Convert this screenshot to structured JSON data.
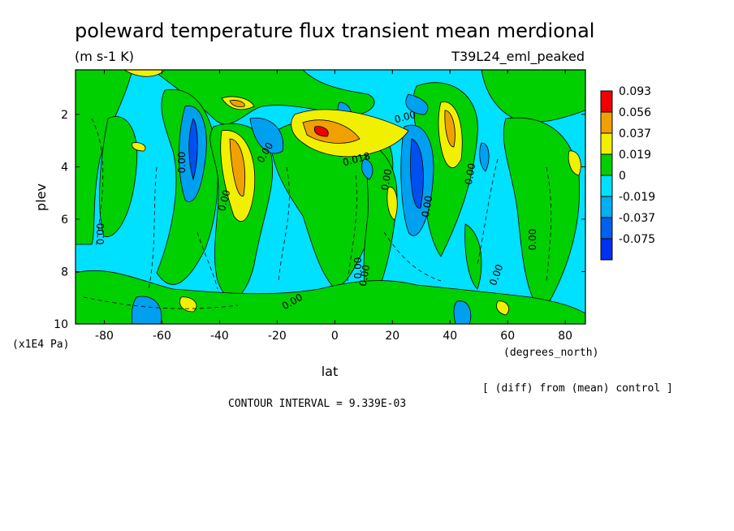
{
  "chart_data": {
    "type": "heatmap",
    "title": "poleward temperature flux transient mean merdional",
    "units": "(m s-1 K)",
    "run_label": "T39L24_eml_peaked",
    "xlabel": "lat",
    "x_units": "(degrees_north)",
    "ylabel": "plev",
    "y_units": "(x1E4 Pa)",
    "xlim": [
      -90,
      87
    ],
    "ylim": [
      10,
      0.3
    ],
    "x_ticks": [
      "-80",
      "-60",
      "-40",
      "-20",
      "0",
      "20",
      "40",
      "60",
      "80"
    ],
    "y_ticks": [
      "2",
      "4",
      "6",
      "8",
      "10"
    ],
    "legend_levels": [
      "0.093",
      "0.056",
      "0.037",
      "0.019",
      "0",
      "-0.019",
      "-0.037",
      "-0.075"
    ],
    "legend_colors": [
      "#f00000",
      "#f0a000",
      "#f0f000",
      "#00d000",
      "#00e0ff",
      "#00b0f0",
      "#0060f0",
      "#0030f0"
    ],
    "contour_labels": [
      "0.00",
      "0.00",
      "0.00",
      "0.00",
      "0.00",
      "0.00",
      "0.00",
      "0.00",
      "0.00",
      "0.00",
      "0.018",
      "0.00",
      "0.00",
      "0.00"
    ],
    "note": "[ (diff) from (mean) control ]",
    "contour_interval": "CONTOUR INTERVAL = 9.339E-03",
    "colors": {
      "positive_high": "#f00000",
      "positive_mid": "#f0a000",
      "positive_low": "#f0f000",
      "near_zero_pos": "#00d000",
      "near_zero_neg": "#00e0ff",
      "negative_mid": "#00a0f0",
      "negative_high": "#0050f0"
    }
  }
}
